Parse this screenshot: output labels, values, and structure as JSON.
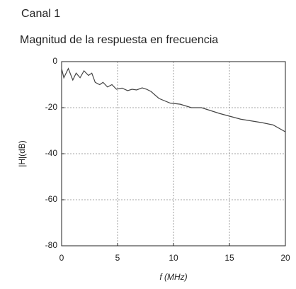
{
  "chart_data": {
    "type": "line",
    "title": "Canal 1",
    "subtitle": "Magnitud de la respuesta en frecuencia",
    "x_label": "f (MHz)",
    "y_label": "|H|(dB)",
    "x": [
      0,
      0.2,
      0.6,
      1,
      1.3,
      1.65,
      2,
      2.4,
      2.7,
      3,
      3.4,
      3.7,
      4.1,
      4.5,
      4.9,
      5.4,
      5.9,
      6.3,
      6.7,
      7.2,
      7.6,
      8,
      8.7,
      9.7,
      10.6,
      11.6,
      12.5,
      14.1,
      16,
      17.9,
      18.9,
      20
    ],
    "series": [
      {
        "name": "Canal 1",
        "color": "#444444",
        "values": [
          -3,
          -7,
          -3,
          -8,
          -5,
          -7,
          -4,
          -6,
          -5,
          -9,
          -10,
          -9,
          -11,
          -10,
          -12,
          -11.5,
          -12.6,
          -12,
          -12.3,
          -11.4,
          -12,
          -13,
          -16,
          -18,
          -18.5,
          -20,
          -20,
          -22.5,
          -25,
          -26.5,
          -27.5,
          -30.5
        ]
      }
    ],
    "xlim": [
      0,
      20
    ],
    "xticks": [
      0,
      5,
      10,
      15,
      20
    ],
    "ylim": [
      -80,
      0
    ],
    "yticks": [
      0,
      -20,
      -40,
      -60,
      -80
    ],
    "grid": true
  }
}
